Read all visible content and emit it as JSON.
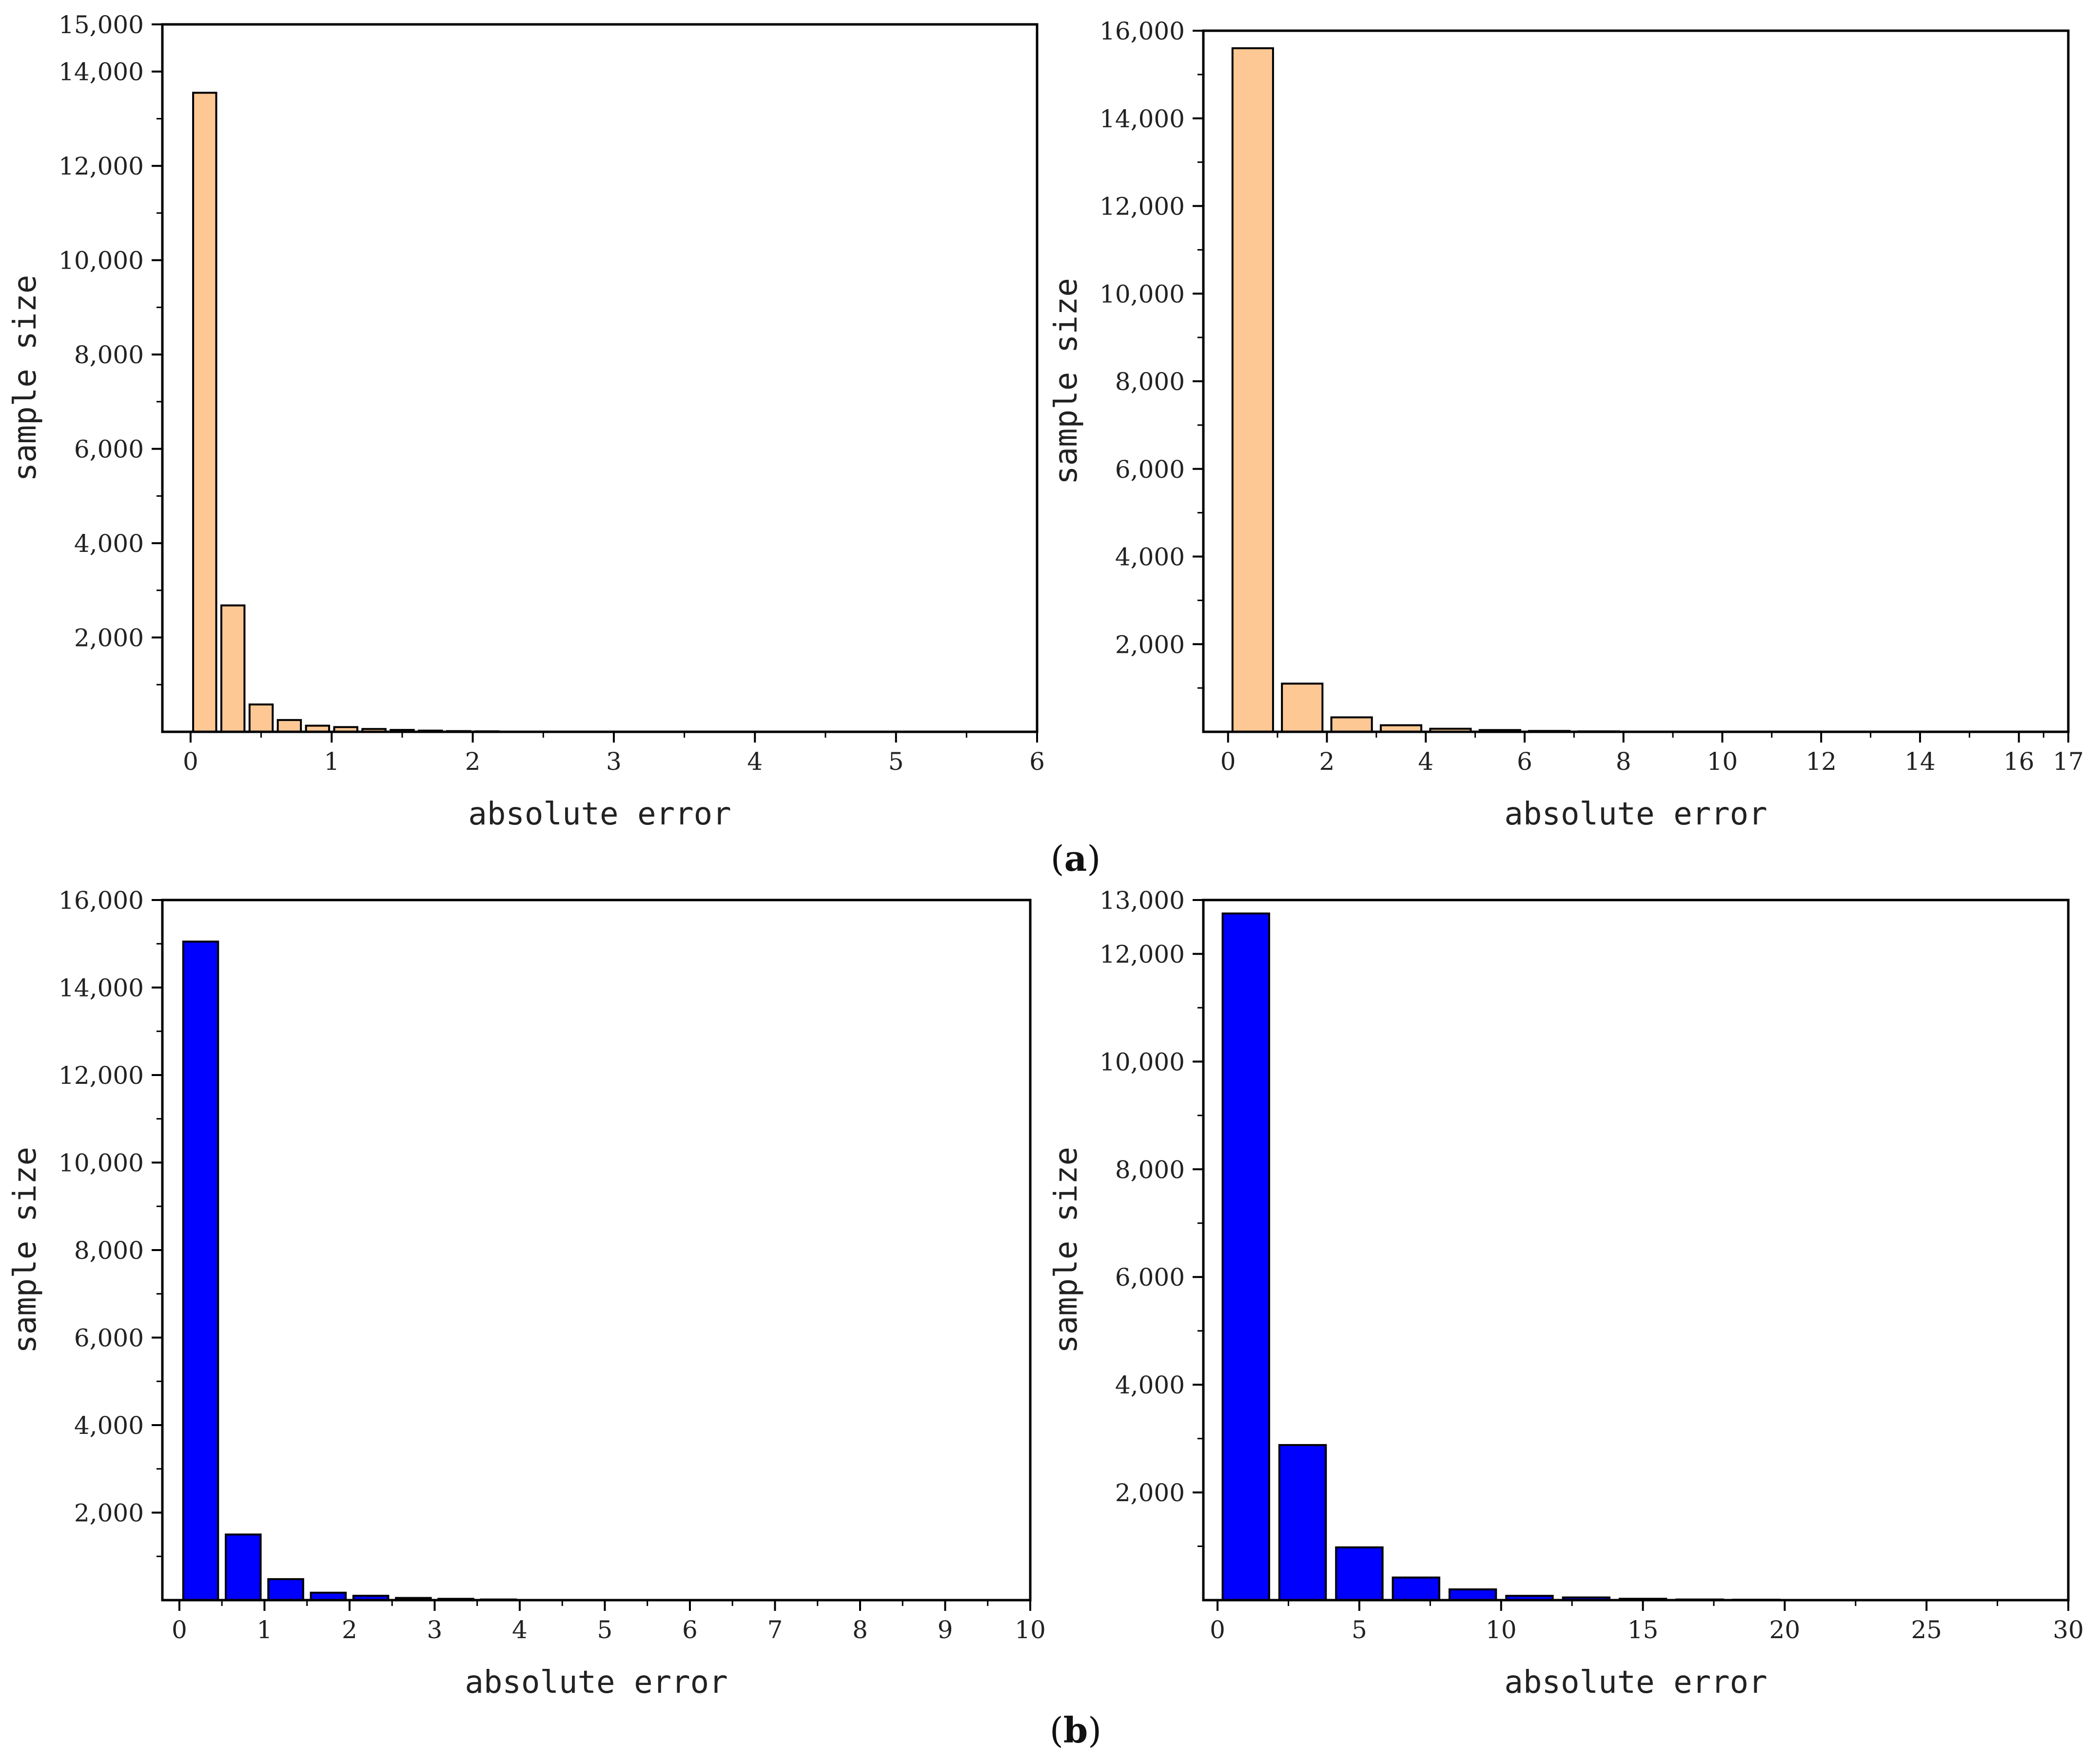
{
  "colors": {
    "orange": "#fdc894",
    "blue": "#0000ff",
    "axis": "#000000"
  },
  "captions": {
    "a": {
      "open": "(",
      "letter": "a",
      "close": ")"
    },
    "b": {
      "open": "(",
      "letter": "b",
      "close": ")"
    }
  },
  "chart_data": [
    {
      "id": "a-left",
      "type": "bar",
      "panel": "a",
      "color": "orange",
      "xlabel": "absolute error",
      "ylabel": "sample size",
      "xlim": [
        -0.2,
        6
      ],
      "ylim": [
        0,
        15000
      ],
      "xticks": [
        0,
        1,
        2,
        3,
        4,
        5,
        6
      ],
      "xtick_labels": [
        "0",
        "1",
        "2",
        "3",
        "4",
        "5",
        "6"
      ],
      "yticks": [
        2000,
        4000,
        6000,
        8000,
        10000,
        12000,
        14000,
        15000
      ],
      "ytick_labels": [
        "2,000",
        "4,000",
        "6,000",
        "8,000",
        "10,000",
        "12,000",
        "14,000",
        "15,000"
      ],
      "bin_width": 0.2,
      "x": [
        0.1,
        0.3,
        0.5,
        0.7,
        0.9,
        1.1,
        1.3,
        1.5,
        1.7,
        1.9,
        2.1
      ],
      "values": [
        13550,
        2680,
        580,
        250,
        130,
        100,
        60,
        40,
        25,
        15,
        10
      ]
    },
    {
      "id": "a-right",
      "type": "bar",
      "panel": "a",
      "color": "orange",
      "xlabel": "absolute error",
      "ylabel": "sample size",
      "xlim": [
        -0.5,
        17
      ],
      "ylim": [
        0,
        16000
      ],
      "xticks": [
        0,
        2,
        4,
        6,
        8,
        10,
        12,
        14,
        16,
        17
      ],
      "xtick_labels": [
        "0",
        "2",
        "4",
        "6",
        "8",
        "10",
        "12",
        "14",
        "16",
        "17"
      ],
      "yticks": [
        2000,
        4000,
        6000,
        8000,
        10000,
        12000,
        14000,
        16000
      ],
      "ytick_labels": [
        "2,000",
        "4,000",
        "6,000",
        "8,000",
        "10,000",
        "12,000",
        "14,000",
        "16,000"
      ],
      "bin_width": 1.0,
      "x": [
        0.5,
        1.5,
        2.5,
        3.5,
        4.5,
        5.5,
        6.5,
        7.5
      ],
      "values": [
        15600,
        1100,
        330,
        150,
        70,
        40,
        20,
        10
      ]
    },
    {
      "id": "b-left",
      "type": "bar",
      "panel": "b",
      "color": "blue",
      "xlabel": "absolute error",
      "ylabel": "sample size",
      "xlim": [
        -0.2,
        10
      ],
      "ylim": [
        0,
        16000
      ],
      "xticks": [
        0,
        1,
        2,
        3,
        4,
        5,
        6,
        7,
        8,
        9,
        10
      ],
      "xtick_labels": [
        "0",
        "1",
        "2",
        "3",
        "4",
        "5",
        "6",
        "7",
        "8",
        "9",
        "10"
      ],
      "yticks": [
        2000,
        4000,
        6000,
        8000,
        10000,
        12000,
        14000,
        16000
      ],
      "ytick_labels": [
        "2,000",
        "4,000",
        "6,000",
        "8,000",
        "10,000",
        "12,000",
        "14,000",
        "16,000"
      ],
      "bin_width": 0.5,
      "x": [
        0.25,
        0.75,
        1.25,
        1.75,
        2.25,
        2.75,
        3.25,
        3.75
      ],
      "values": [
        15050,
        1500,
        480,
        170,
        100,
        50,
        30,
        15
      ]
    },
    {
      "id": "b-right",
      "type": "bar",
      "panel": "b",
      "color": "blue",
      "xlabel": "absolute error",
      "ylabel": "sample size",
      "xlim": [
        -0.5,
        30
      ],
      "ylim": [
        0,
        13000
      ],
      "xticks": [
        0,
        5,
        10,
        15,
        20,
        25,
        30
      ],
      "xtick_labels": [
        "0",
        "5",
        "10",
        "15",
        "20",
        "25",
        "30"
      ],
      "yticks": [
        2000,
        4000,
        6000,
        8000,
        10000,
        12000,
        13000
      ],
      "ytick_labels": [
        "2,000",
        "4,000",
        "6,000",
        "8,000",
        "10,000",
        "12,000",
        "13,000"
      ],
      "bin_width": 2.0,
      "x": [
        1,
        3,
        5,
        7,
        9,
        11,
        13,
        15,
        17,
        19
      ],
      "values": [
        12750,
        2880,
        980,
        420,
        200,
        80,
        50,
        25,
        12,
        8
      ]
    }
  ]
}
